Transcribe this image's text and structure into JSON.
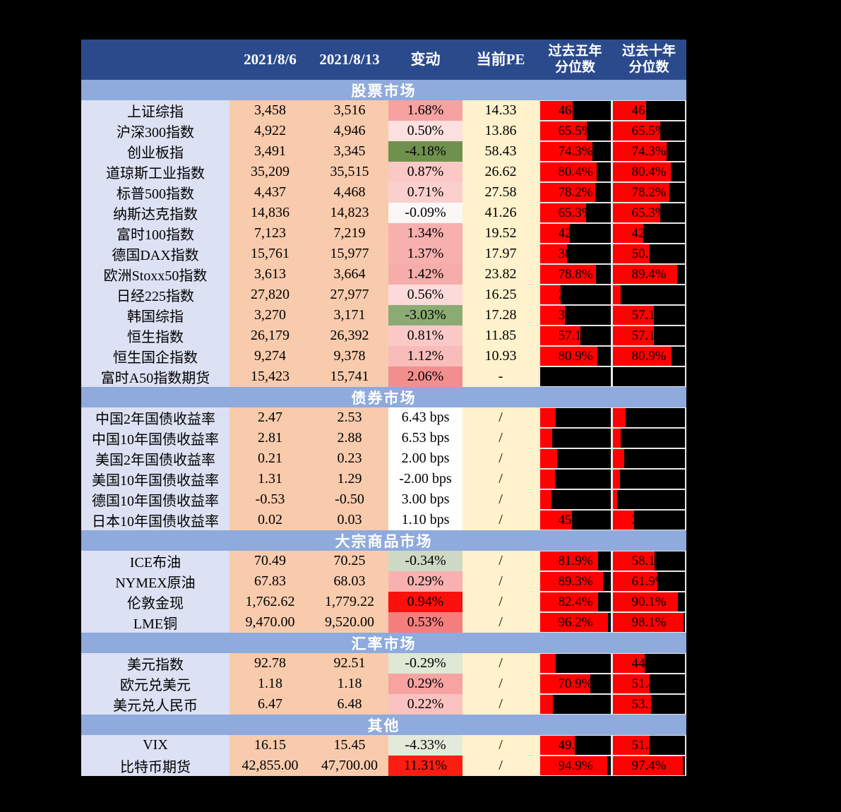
{
  "header": {
    "cols": [
      "2021/8/6",
      "2021/8/13",
      "变动",
      "当前PE",
      "过去五年\n分位数",
      "过去十年\n分位数"
    ]
  },
  "colors": {
    "header_bg": "#2b4a8c",
    "section_band_bg": "#8faadc",
    "label_col_bg": "#dce1f3",
    "value_col_bg": "#f8cbad",
    "pe_col_bg": "#fff2cc",
    "percentile_cell_bg": "#000000",
    "percentile_bar": "#fe0100",
    "grid_line": "#e8e8e8",
    "page_bg": "#000000"
  },
  "chart_data": {
    "type": "table",
    "columns": [
      "指标",
      "2021/8/6",
      "2021/8/13",
      "变动",
      "当前PE",
      "过去五年分位数",
      "过去十年分位数"
    ],
    "sections": [
      {
        "title": "股票市场",
        "rows": [
          {
            "label": "上证综指",
            "v1": "3,458",
            "v2": "3,516",
            "chg": "1.68%",
            "chg_bg": "#f5a2a1",
            "pe": "14.33",
            "p5": {
              "text": "46.4%",
              "bar": 46
            },
            "p10": {
              "text": "46.4%",
              "bar": 46
            }
          },
          {
            "label": "沪深300指数",
            "v1": "4,922",
            "v2": "4,946",
            "chg": "0.50%",
            "chg_bg": "#fcdfdf",
            "pe": "13.86",
            "p5": {
              "text": "65.5%",
              "bar": 65.5
            },
            "p10": {
              "text": "65.5%",
              "bar": 65.5
            }
          },
          {
            "label": "创业板指",
            "v1": "3,491",
            "v2": "3,345",
            "chg": "-4.18%",
            "chg_bg": "#70914e",
            "pe": "58.43",
            "p5": {
              "text": "74.3%",
              "bar": 74.3
            },
            "p10": {
              "text": "74.3%",
              "bar": 74.3
            }
          },
          {
            "label": "道琼斯工业指数",
            "v1": "35,209",
            "v2": "35,515",
            "chg": "0.87%",
            "chg_bg": "#fac8c7",
            "pe": "26.62",
            "p5": {
              "text": "80.4%",
              "bar": 80.4
            },
            "p10": {
              "text": "80.4%",
              "bar": 80.4
            }
          },
          {
            "label": "标普500指数",
            "v1": "4,437",
            "v2": "4,468",
            "chg": "0.71%",
            "chg_bg": "#fbcfce",
            "pe": "27.58",
            "p5": {
              "text": "78.2%",
              "bar": 78.2
            },
            "p10": {
              "text": "78.2%",
              "bar": 78.2
            }
          },
          {
            "label": "纳斯达克指数",
            "v1": "14,836",
            "v2": "14,823",
            "chg": "-0.09%",
            "chg_bg": "#fbf7f7",
            "pe": "41.26",
            "p5": {
              "text": "65.3%",
              "bar": 65.3
            },
            "p10": {
              "text": "65.3%",
              "bar": 65.3
            }
          },
          {
            "label": "富时100指数",
            "v1": "7,123",
            "v2": "7,219",
            "chg": "1.34%",
            "chg_bg": "#f7b0ae",
            "pe": "19.52",
            "p5": {
              "text": "42.1%",
              "bar": 42
            },
            "p10": {
              "text": "42.1%",
              "bar": 42
            }
          },
          {
            "label": "德国DAX指数",
            "v1": "15,761",
            "v2": "15,977",
            "chg": "1.37%",
            "chg_bg": "#f7b0ae",
            "pe": "17.97",
            "p5": {
              "text": "38.3%",
              "bar": 38
            },
            "p10": {
              "text": "50.7%",
              "bar": 50.7
            }
          },
          {
            "label": "欧洲Stoxx50指数",
            "v1": "3,613",
            "v2": "3,664",
            "chg": "1.42%",
            "chg_bg": "#f6acaa",
            "pe": "23.82",
            "p5": {
              "text": "78.8%",
              "bar": 78.8
            },
            "p10": {
              "text": "89.4%",
              "bar": 89.4
            }
          },
          {
            "label": "日经225指数",
            "v1": "27,820",
            "v2": "27,977",
            "chg": "0.56%",
            "chg_bg": "#fcdad9",
            "pe": "16.25",
            "p5": {
              "text": "29.0%",
              "bar": 29
            },
            "p10": {
              "text": "11.0%",
              "bar": 11
            }
          },
          {
            "label": "韩国综指",
            "v1": "3,270",
            "v2": "3,171",
            "chg": "-3.03%",
            "chg_bg": "#8bab72",
            "pe": "17.28",
            "p5": {
              "text": "35.0%",
              "bar": 35
            },
            "p10": {
              "text": "57.1%",
              "bar": 57.1
            }
          },
          {
            "label": "恒生指数",
            "v1": "26,179",
            "v2": "26,392",
            "chg": "0.81%",
            "chg_bg": "#fac9c7",
            "pe": "11.85",
            "p5": {
              "text": "57.1%",
              "bar": 57.1
            },
            "p10": {
              "text": "57.1%",
              "bar": 57.1
            }
          },
          {
            "label": "恒生国企指数",
            "v1": "9,274",
            "v2": "9,378",
            "chg": "1.12%",
            "chg_bg": "#f8bcba",
            "pe": "10.93",
            "p5": {
              "text": "80.9%",
              "bar": 80.9
            },
            "p10": {
              "text": "80.9%",
              "bar": 80.9
            }
          },
          {
            "label": "富时A50指数期货",
            "v1": "15,423",
            "v2": "15,741",
            "chg": "2.06%",
            "chg_bg": "#f28f8e",
            "pe": "-",
            "p5": {
              "text": "",
              "bar": 0
            },
            "p10": {
              "text": "",
              "bar": 0
            }
          }
        ]
      },
      {
        "title": "债券市场",
        "rows": [
          {
            "label": "中国2年国债收益率",
            "v1": "2.47",
            "v2": "2.53",
            "chg": "6.43 bps",
            "chg_bg": "#ffffff",
            "pe": "/",
            "p5": {
              "text": "22.0%",
              "bar": 22
            },
            "p10": {
              "text": "18.0%",
              "bar": 18
            }
          },
          {
            "label": "中国10年国债收益率",
            "v1": "2.81",
            "v2": "2.88",
            "chg": "6.53 bps",
            "chg_bg": "#ffffff",
            "pe": "/",
            "p5": {
              "text": "17.0%",
              "bar": 17
            },
            "p10": {
              "text": "11.0%",
              "bar": 11
            }
          },
          {
            "label": "美国2年国债收益率",
            "v1": "0.21",
            "v2": "0.23",
            "chg": "2.00 bps",
            "chg_bg": "#ffffff",
            "pe": "/",
            "p5": {
              "text": "24.0%",
              "bar": 24
            },
            "p10": {
              "text": "16.0%",
              "bar": 16
            }
          },
          {
            "label": "美国10年国债收益率",
            "v1": "1.31",
            "v2": "1.29",
            "chg": "-2.00 bps",
            "chg_bg": "#ffffff",
            "pe": "/",
            "p5": {
              "text": "21.0%",
              "bar": 21
            },
            "p10": {
              "text": "10.0%",
              "bar": 10
            }
          },
          {
            "label": "德国10年国债收益率",
            "v1": "-0.53",
            "v2": "-0.50",
            "chg": "3.00 bps",
            "chg_bg": "#ffffff",
            "pe": "/",
            "p5": {
              "text": "16.0%",
              "bar": 16
            },
            "p10": {
              "text": "6.0%",
              "bar": 6
            }
          },
          {
            "label": "日本10年国债收益率",
            "v1": "0.02",
            "v2": "0.03",
            "chg": "1.10 bps",
            "chg_bg": "#ffffff",
            "pe": "/",
            "p5": {
              "text": "45.3%",
              "bar": 45
            },
            "p10": {
              "text": "29.0%",
              "bar": 29
            }
          }
        ]
      },
      {
        "title": "大宗商品市场",
        "rows": [
          {
            "label": "ICE布油",
            "v1": "70.49",
            "v2": "70.25",
            "chg": "-0.34%",
            "chg_bg": "#cdd9c4",
            "pe": "/",
            "p5": {
              "text": "81.9%",
              "bar": 81.9
            },
            "p10": {
              "text": "58.1%",
              "bar": 58.1
            }
          },
          {
            "label": "NYMEX原油",
            "v1": "67.83",
            "v2": "68.03",
            "chg": "0.29%",
            "chg_bg": "#f8b1b0",
            "pe": "/",
            "p5": {
              "text": "89.3%",
              "bar": 89.3
            },
            "p10": {
              "text": "61.9%",
              "bar": 61.9
            }
          },
          {
            "label": "伦敦金现",
            "v1": "1,762.62",
            "v2": "1,779.22",
            "chg": "0.94%",
            "chg_bg": "#fc100d",
            "pe": "/",
            "p5": {
              "text": "82.4%",
              "bar": 82.4
            },
            "p10": {
              "text": "90.1%",
              "bar": 90.1
            }
          },
          {
            "label": "LME铜",
            "v1": "9,470.00",
            "v2": "9,520.00",
            "chg": "0.53%",
            "chg_bg": "#f47e7c",
            "pe": "/",
            "p5": {
              "text": "96.2%",
              "bar": 96.2
            },
            "p10": {
              "text": "98.1%",
              "bar": 98.1
            }
          }
        ]
      },
      {
        "title": "汇率市场",
        "rows": [
          {
            "label": "美元指数",
            "v1": "92.78",
            "v2": "92.51",
            "chg": "-0.29%",
            "chg_bg": "#dfe8d5",
            "pe": "/",
            "p5": {
              "text": "22.0%",
              "bar": 22
            },
            "p10": {
              "text": "44.4%",
              "bar": 44.4
            }
          },
          {
            "label": "欧元兑美元",
            "v1": "1.18",
            "v2": "1.18",
            "chg": "0.29%",
            "chg_bg": "#f6a3a1",
            "pe": "/",
            "p5": {
              "text": "70.9%",
              "bar": 70.9
            },
            "p10": {
              "text": "51.4%",
              "bar": 51.4
            }
          },
          {
            "label": "美元兑人民币",
            "v1": "6.47",
            "v2": "6.48",
            "chg": "0.22%",
            "chg_bg": "#f9c1bf",
            "pe": "/",
            "p5": {
              "text": "18.0%",
              "bar": 18
            },
            "p10": {
              "text": "53.1%",
              "bar": 53.1
            }
          }
        ]
      },
      {
        "title": "其他",
        "rows": [
          {
            "label": "VIX",
            "v1": "16.15",
            "v2": "15.45",
            "chg": "-4.33%",
            "chg_bg": "#e4ead9",
            "pe": "/",
            "p5": {
              "text": "49.1%",
              "bar": 49
            },
            "p10": {
              "text": "51.3%",
              "bar": 51
            }
          },
          {
            "label": "比特币期货",
            "v1": "42,855.00",
            "v2": "47,700.00",
            "chg": "11.31%",
            "chg_bg": "#fb1d12",
            "pe": "/",
            "p5": {
              "text": "94.9%",
              "bar": 94.9
            },
            "p10": {
              "text": "97.4%",
              "bar": 97.4
            }
          }
        ]
      }
    ]
  }
}
